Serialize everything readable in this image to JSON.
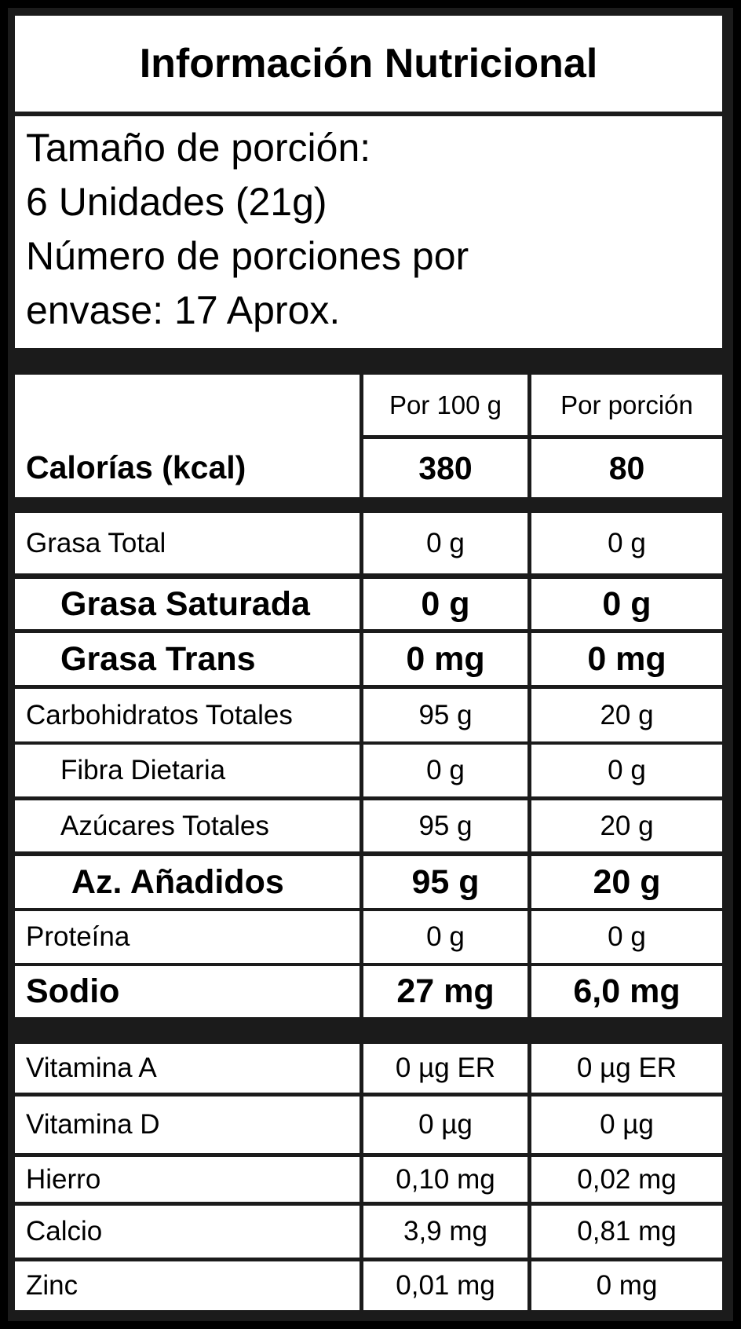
{
  "title": "Información Nutricional",
  "serving": {
    "line1": "Tamaño de porción:",
    "line2": "6 Unidades (21g)",
    "line3": "Número de porciones por",
    "line4": "envase: 17 Aprox."
  },
  "columns": {
    "per100": "Por 100 g",
    "perPortion": "Por porción"
  },
  "calories": {
    "label": "Calorías (kcal)",
    "per100": "380",
    "perPortion": "80"
  },
  "rows": [
    {
      "label": "Grasa Total",
      "per100": "0 g",
      "perPortion": "0 g",
      "style": "normal",
      "indent": 0
    },
    {
      "label": "Grasa Saturada",
      "per100": "0 g",
      "perPortion": "0 g",
      "style": "bold",
      "indent": 1
    },
    {
      "label": "Grasa Trans",
      "per100": "0 mg",
      "perPortion": "0 mg",
      "style": "bold",
      "indent": 1
    },
    {
      "label": "Carbohidratos Totales",
      "per100": "95 g",
      "perPortion": "20 g",
      "style": "normal",
      "indent": 0
    },
    {
      "label": "Fibra Dietaria",
      "per100": "0 g",
      "perPortion": "0 g",
      "style": "normal",
      "indent": 1
    },
    {
      "label": "Azúcares Totales",
      "per100": "95 g",
      "perPortion": "20 g",
      "style": "normal",
      "indent": 1
    },
    {
      "label": "Az. Añadidos",
      "per100": "95 g",
      "perPortion": "20 g",
      "style": "bold",
      "indent": 2
    },
    {
      "label": "Proteína",
      "per100": "0 g",
      "perPortion": "0 g",
      "style": "normal",
      "indent": 0
    },
    {
      "label": "Sodio",
      "per100": "27 mg",
      "perPortion": "6,0 mg",
      "style": "bold",
      "indent": 0
    }
  ],
  "micros": [
    {
      "label": "Vitamina A",
      "per100": "0 µg ER",
      "perPortion": "0 µg ER"
    },
    {
      "label": "Vitamina D",
      "per100": "0 µg",
      "perPortion": "0 µg"
    },
    {
      "label": "Hierro",
      "per100": "0,10 mg",
      "perPortion": "0,02 mg"
    },
    {
      "label": "Calcio",
      "per100": "3,9 mg",
      "perPortion": "0,81 mg"
    },
    {
      "label": "Zinc",
      "per100": "0,01 mg",
      "perPortion": "0 mg"
    }
  ]
}
